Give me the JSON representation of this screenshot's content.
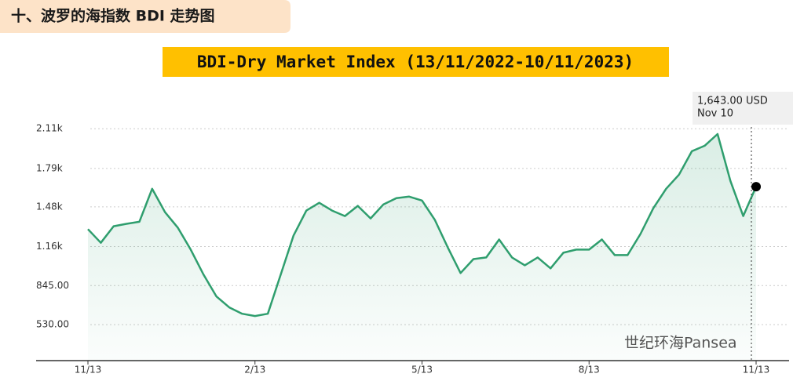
{
  "header": "十、波罗的海指数 BDI 走势图",
  "watermark": "世纪环海Pansea",
  "chart_data": {
    "type": "line",
    "title": "BDI-Dry Market Index (13/11/2022-10/11/2023)",
    "annotation": {
      "value_label": "1,643.00 USD",
      "date": "Nov 10"
    },
    "categories": [
      "11/13",
      null,
      null,
      null,
      null,
      null,
      null,
      null,
      null,
      null,
      null,
      null,
      null,
      "2/13",
      null,
      null,
      null,
      null,
      null,
      null,
      null,
      null,
      null,
      null,
      null,
      null,
      "5/13",
      null,
      null,
      null,
      null,
      null,
      null,
      null,
      null,
      null,
      null,
      null,
      null,
      "8/13",
      null,
      null,
      null,
      null,
      null,
      null,
      null,
      null,
      null,
      null,
      null,
      null,
      "11/13"
    ],
    "series": [
      {
        "name": "BDI",
        "color": "#2f9e6e",
        "values": [
          1300,
          1190,
          1324,
          1343,
          1360,
          1626,
          1437,
          1311,
          1135,
          933,
          757,
          669,
          618,
          600,
          618,
          933,
          1248,
          1450,
          1513,
          1450,
          1406,
          1488,
          1387,
          1500,
          1550,
          1563,
          1531,
          1374,
          1154,
          946,
          1059,
          1072,
          1217,
          1072,
          1009,
          1072,
          984,
          1110,
          1135,
          1135,
          1217,
          1091,
          1091,
          1261,
          1469,
          1626,
          1740,
          1929,
          1973,
          2067,
          1689,
          1406,
          1643
        ]
      }
    ],
    "ylim": [
      240,
      2200
    ],
    "yticks": [
      {
        "value": 530,
        "label": "530.00"
      },
      {
        "value": 845,
        "label": "845.00"
      },
      {
        "value": 1160,
        "label": "1.16k"
      },
      {
        "value": 1480,
        "label": "1.48k"
      },
      {
        "value": 1790,
        "label": "1.79k"
      },
      {
        "value": 2110,
        "label": "2.11k"
      }
    ],
    "grid": true
  }
}
